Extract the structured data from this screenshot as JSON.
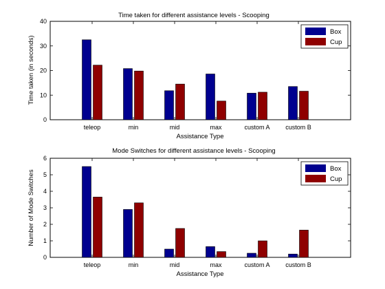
{
  "colors": {
    "box": "#00008f",
    "cup": "#8f0000"
  },
  "chart_data": [
    {
      "type": "bar",
      "title": "Time taken for different assistance levels - Scooping",
      "xlabel": "Assistance Type",
      "ylabel": "Time taken (in seconds)",
      "categories": [
        "teleop",
        "min",
        "mid",
        "max",
        "custom A",
        "custom B"
      ],
      "series": [
        {
          "name": "Box",
          "values": [
            32.5,
            20.8,
            11.8,
            18.6,
            10.8,
            13.5
          ]
        },
        {
          "name": "Cup",
          "values": [
            22.2,
            19.8,
            14.5,
            7.6,
            11.2,
            11.6
          ]
        }
      ],
      "ylim": [
        0,
        40
      ],
      "yticks": [
        "0",
        "10",
        "20",
        "30",
        "40"
      ],
      "legend": "top-right",
      "grid": false
    },
    {
      "type": "bar",
      "title": "Mode Switches for different assistance levels - Scooping",
      "xlabel": "Assistance Type",
      "ylabel": "Number of Mode Switches",
      "categories": [
        "teleop",
        "min",
        "mid",
        "max",
        "custom A",
        "custom B"
      ],
      "series": [
        {
          "name": "Box",
          "values": [
            5.5,
            2.9,
            0.5,
            0.65,
            0.25,
            0.2
          ]
        },
        {
          "name": "Cup",
          "values": [
            3.65,
            3.3,
            1.75,
            0.35,
            1.0,
            1.65
          ]
        }
      ],
      "ylim": [
        0,
        6
      ],
      "yticks": [
        "0",
        "1",
        "2",
        "3",
        "4",
        "5",
        "6"
      ],
      "legend": "top-right",
      "grid": false
    }
  ]
}
